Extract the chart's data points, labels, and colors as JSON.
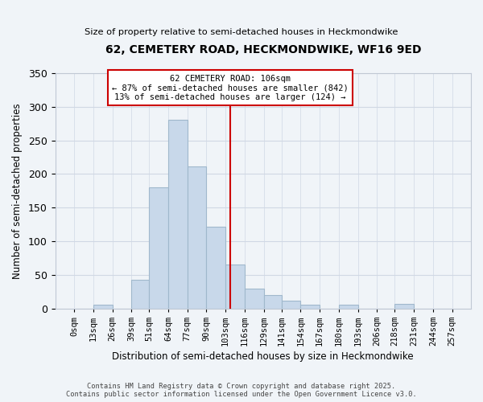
{
  "title": "62, CEMETERY ROAD, HECKMONDWIKE, WF16 9ED",
  "subtitle": "Size of property relative to semi-detached houses in Heckmondwike",
  "xlabel": "Distribution of semi-detached houses by size in Heckmondwike",
  "ylabel": "Number of semi-detached properties",
  "bin_edges": [
    0,
    13,
    26,
    39,
    51,
    64,
    77,
    90,
    103,
    116,
    129,
    141,
    154,
    167,
    180,
    193,
    206,
    218,
    231,
    244,
    257
  ],
  "bin_labels": [
    "0sqm",
    "13sqm",
    "26sqm",
    "39sqm",
    "51sqm",
    "64sqm",
    "77sqm",
    "90sqm",
    "103sqm",
    "116sqm",
    "129sqm",
    "141sqm",
    "154sqm",
    "167sqm",
    "180sqm",
    "193sqm",
    "206sqm",
    "218sqm",
    "231sqm",
    "244sqm",
    "257sqm"
  ],
  "counts": [
    0,
    5,
    0,
    43,
    180,
    281,
    211,
    122,
    65,
    29,
    20,
    11,
    6,
    0,
    5,
    0,
    0,
    7,
    0,
    0
  ],
  "bar_color": "#c8d8ea",
  "bar_edge_color": "#a0b8cc",
  "vline_x": 106,
  "vline_color": "#cc0000",
  "annotation_title": "62 CEMETERY ROAD: 106sqm",
  "annotation_line1": "← 87% of semi-detached houses are smaller (842)",
  "annotation_line2": "13% of semi-detached houses are larger (124) →",
  "annotation_box_color": "#ffffff",
  "annotation_box_edge": "#cc0000",
  "ylim": [
    0,
    350
  ],
  "yticks": [
    0,
    50,
    100,
    150,
    200,
    250,
    300,
    350
  ],
  "footer1": "Contains HM Land Registry data © Crown copyright and database right 2025.",
  "footer2": "Contains public sector information licensed under the Open Government Licence v3.0.",
  "bg_color": "#f0f4f8",
  "grid_color": "#d0d8e4"
}
